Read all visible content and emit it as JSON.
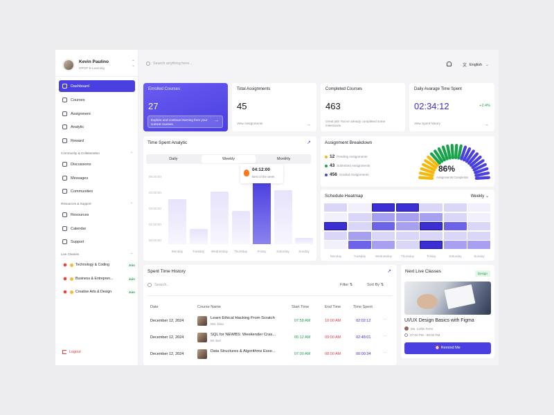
{
  "user": {
    "name": "Kevin Paulino",
    "role": "OPGP E-Learning"
  },
  "nav": {
    "main": [
      "Dashboard",
      "Courses",
      "Assignment",
      "Analytic",
      "Reward"
    ],
    "community_title": "Community & Collaboration",
    "community": [
      "Discussions",
      "Messages",
      "Communities"
    ],
    "resources_title": "Resources & Support",
    "resources": [
      "Resources",
      "Calendar",
      "Support"
    ],
    "live_title": "Live Classes",
    "live": [
      {
        "label": "Technology & Coding",
        "action": "Join"
      },
      {
        "label": "Business & Entrepren...",
        "action": "Join"
      },
      {
        "label": "Creative Arts & Design",
        "action": "Join"
      }
    ],
    "logout": "Logout"
  },
  "header": {
    "search_placeholder": "Search anything here...",
    "language": "English"
  },
  "stats": {
    "enrolled": {
      "title": "Enrolled Courses",
      "value": "27",
      "note": "Explore and continue learning from your current courses."
    },
    "assignments": {
      "title": "Total Assignments",
      "value": "45",
      "link": "View Assignments"
    },
    "completed": {
      "title": "Completed Courses",
      "value": "463",
      "note": "Great job! You've already completed some milestones."
    },
    "time": {
      "title": "Daily Avarage Time Spent",
      "value": "02:34:12",
      "delta": "+2.4%",
      "link": "View Spent history"
    }
  },
  "analytic": {
    "title": "Time Spent Analytic",
    "tabs": [
      "Daily",
      "Weekly",
      "Monthly"
    ],
    "y_ticks": [
      "06:00:00",
      "04:00:00",
      "02:00:00",
      "01:00:00",
      "00:00:00"
    ],
    "tooltip_value": "04:12:00",
    "tooltip_label": "Best of the week"
  },
  "chart_data": {
    "type": "bar",
    "categories": [
      "Monday",
      "Tuesday",
      "Wednesday",
      "Thursday",
      "Friday",
      "Saturday",
      "Sunday"
    ],
    "values": [
      3.0,
      1.0,
      3.5,
      2.2,
      4.2,
      3.6,
      0.4
    ],
    "highlight": "Friday",
    "ylim": [
      0,
      6
    ]
  },
  "breakdown": {
    "title": "Assignment Breakdown",
    "items": [
      {
        "count": "12",
        "label": "Pending Assignments",
        "color": "#f5b80b"
      },
      {
        "count": "43",
        "label": "Submitted Assignments",
        "color": "#17a34a"
      },
      {
        "count": "456",
        "label": "Graded Assignments",
        "color": "#4a3fe0"
      }
    ],
    "percent": "86%",
    "percent_label": "Assignments Completion",
    "segments": {
      "yellow": 6,
      "green": 8,
      "blue": 10
    }
  },
  "heatmap": {
    "title": "Schedule Heatmap",
    "period": "Weekly",
    "days": [
      "Monday",
      "Tuesday",
      "Wednesday",
      "Thursday",
      "Friday",
      "Saturday",
      "Sunday"
    ],
    "levels": [
      [
        1,
        0,
        4,
        4,
        1,
        1,
        0
      ],
      [
        0,
        1,
        2,
        2,
        2,
        1,
        0
      ],
      [
        4,
        1,
        3,
        2,
        4,
        3,
        1
      ],
      [
        1,
        2,
        1,
        1,
        1,
        1,
        1
      ],
      [
        0,
        3,
        2,
        1,
        4,
        2,
        2
      ]
    ]
  },
  "history": {
    "title": "Spent Time History",
    "search_placeholder": "Search...",
    "filter": "Filter",
    "sort": "Sort By",
    "columns": [
      "Date",
      "Course Name",
      "Start Time",
      "End Time",
      "Time Spent"
    ],
    "rows": [
      {
        "date": "December 12, 2024",
        "course": "Learn Ethical Hacking From Scratch",
        "instructor": "Mrs. Dina",
        "start": "07:58 AM",
        "end": "10:00 AM",
        "spent": "02:02:12"
      },
      {
        "date": "December 12, 2024",
        "course": "SQL for NEWBS: Weekender Cras...",
        "instructor": "Mr. Eiel",
        "start": "05:12 AM",
        "end": "09:00 AM",
        "spent": "02:48:01"
      },
      {
        "date": "December 12, 2024",
        "course": "Data Structures & Algorithms Esse...",
        "instructor": "",
        "start": "07:00 AM",
        "end": "08:00 AM",
        "spent": "00:00:34"
      }
    ]
  },
  "next_class": {
    "title": "Next Live Classes",
    "badge": "Design",
    "course": "UI/UX Design Basics with Figma",
    "instructor": "Ms. Collin Ferre",
    "time": "07:00 PM - 09:00 PM",
    "button": "Remind Me"
  }
}
